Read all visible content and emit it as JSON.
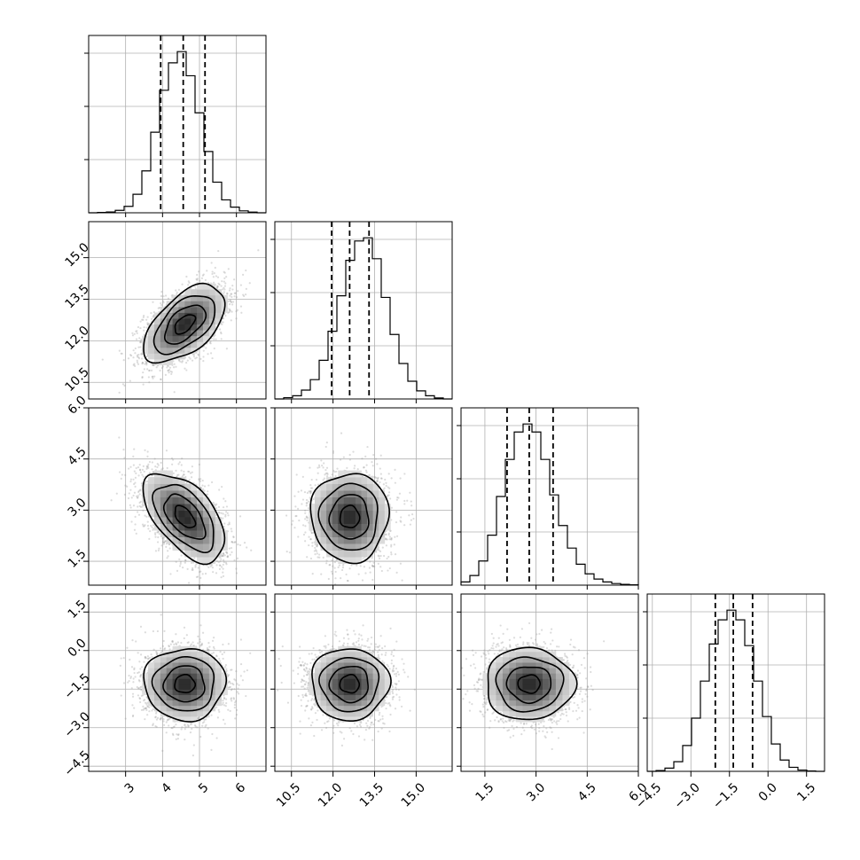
{
  "chart_data": {
    "type": "corner",
    "grid": true,
    "variables": [
      {
        "range": [
          2.0,
          6.8
        ],
        "ticks": [
          3,
          4,
          5,
          6
        ],
        "tick_labels": [
          "3",
          "4",
          "5",
          "6"
        ],
        "quantiles": [
          3.95,
          4.56,
          5.15
        ],
        "mean": 4.6,
        "sd": 0.55
      },
      {
        "range": [
          9.9,
          16.3
        ],
        "ticks": [
          10.5,
          12.0,
          13.5,
          15.0
        ],
        "tick_labels": [
          "10.5",
          "12.0",
          "13.5",
          "15.0"
        ],
        "quantiles": [
          11.95,
          12.6,
          13.3
        ],
        "mean": 12.6,
        "sd": 0.7
      },
      {
        "range": [
          0.8,
          6.0
        ],
        "ticks": [
          1.5,
          3.0,
          4.5,
          6.0
        ],
        "tick_labels": [
          "1.5",
          "3.0",
          "4.5",
          "6.0"
        ],
        "quantiles": [
          2.15,
          2.8,
          3.5
        ],
        "mean": 2.8,
        "sd": 0.65
      },
      {
        "range": [
          -4.7,
          2.2
        ],
        "ticks": [
          -4.5,
          -3.0,
          -1.5,
          0.0,
          1.5
        ],
        "tick_labels": [
          "−4.5",
          "−3.0",
          "−1.5",
          "0.0",
          "1.5"
        ],
        "quantiles": [
          -2.05,
          -1.35,
          -0.6
        ],
        "mean": -1.3,
        "sd": 0.7
      }
    ],
    "correlations": {
      "1_0": 0.55,
      "2_0": -0.55,
      "2_1": 0.0,
      "3_0": 0.0,
      "3_1": 0.0,
      "3_2": 0.0
    },
    "histograms": [
      {
        "bin_edges": [
          2.0,
          2.24,
          2.48,
          2.72,
          2.96,
          3.2,
          3.44,
          3.68,
          3.92,
          4.16,
          4.4,
          4.64,
          4.88,
          5.12,
          5.36,
          5.6,
          5.84,
          6.08,
          6.32,
          6.56,
          6.8
        ],
        "counts": [
          0,
          2,
          5,
          15,
          40,
          115,
          260,
          500,
          760,
          930,
          1000,
          850,
          620,
          380,
          190,
          80,
          35,
          12,
          4,
          0
        ]
      },
      {
        "bin_edges": [
          9.9,
          10.22,
          10.54,
          10.86,
          11.18,
          11.5,
          11.82,
          12.14,
          12.46,
          12.78,
          13.1,
          13.42,
          13.74,
          14.06,
          14.38,
          14.7,
          15.02,
          15.34,
          15.66,
          15.98,
          16.3
        ],
        "counts": [
          0,
          8,
          20,
          55,
          120,
          240,
          420,
          640,
          860,
          980,
          1000,
          870,
          630,
          400,
          220,
          110,
          50,
          20,
          6,
          0
        ]
      },
      {
        "bin_edges": [
          0.8,
          1.06,
          1.32,
          1.58,
          1.84,
          2.1,
          2.36,
          2.62,
          2.88,
          3.14,
          3.4,
          3.66,
          3.92,
          4.18,
          4.44,
          4.7,
          4.96,
          5.22,
          5.48,
          5.74,
          6.0
        ],
        "counts": [
          20,
          60,
          150,
          310,
          550,
          780,
          950,
          1000,
          950,
          780,
          560,
          370,
          230,
          130,
          70,
          38,
          20,
          10,
          5,
          2
        ]
      },
      {
        "bin_edges": [
          -4.7,
          -4.355,
          -4.01,
          -3.665,
          -3.32,
          -2.975,
          -2.63,
          -2.285,
          -1.94,
          -1.595,
          -1.25,
          -0.905,
          -0.56,
          -0.215,
          0.13,
          0.475,
          0.82,
          1.165,
          1.51,
          1.855,
          2.2
        ],
        "counts": [
          0,
          5,
          20,
          60,
          160,
          330,
          560,
          790,
          940,
          1000,
          940,
          780,
          560,
          340,
          170,
          70,
          25,
          8,
          2,
          0
        ]
      }
    ]
  }
}
